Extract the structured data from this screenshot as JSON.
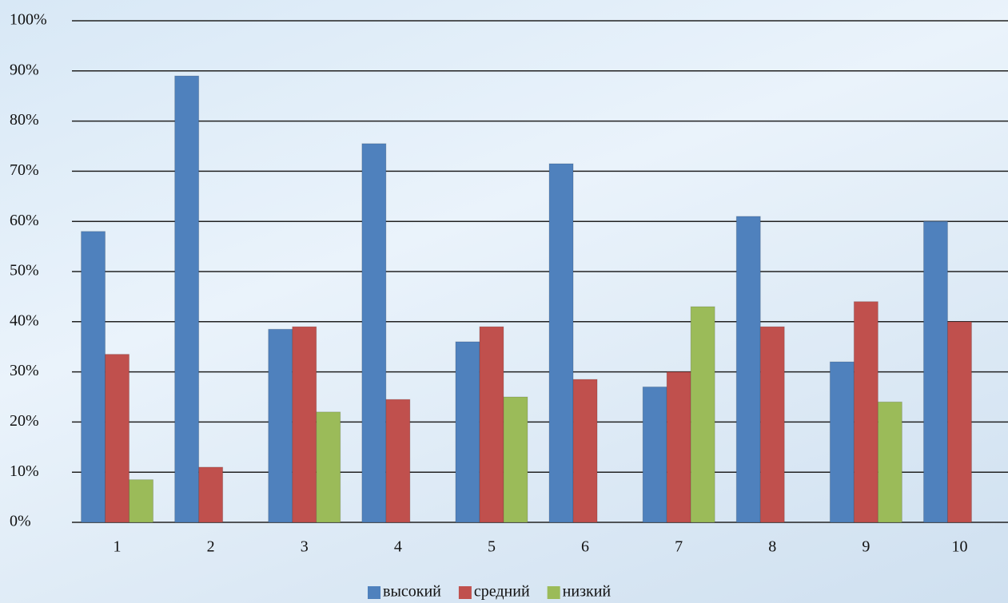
{
  "chart_data": {
    "type": "bar",
    "categories": [
      "1",
      "2",
      "3",
      "4",
      "5",
      "6",
      "7",
      "8",
      "9",
      "10"
    ],
    "series": [
      {
        "name": "высокий",
        "color": "#4f81bd",
        "values": [
          58,
          89,
          38.5,
          75.5,
          36,
          71.5,
          27,
          61,
          32,
          60
        ]
      },
      {
        "name": "средний",
        "color": "#c0504d",
        "values": [
          33.5,
          11,
          39,
          24.5,
          39,
          28.5,
          30,
          39,
          44,
          40
        ]
      },
      {
        "name": "низкий",
        "color": "#9bbb59",
        "values": [
          8.5,
          null,
          22,
          null,
          25,
          null,
          43,
          null,
          24,
          null
        ]
      }
    ],
    "ylim": [
      0,
      100
    ],
    "yticks": [
      {
        "value": 0,
        "label": "0%"
      },
      {
        "value": 10,
        "label": "10%"
      },
      {
        "value": 20,
        "label": "20%"
      },
      {
        "value": 30,
        "label": "30%"
      },
      {
        "value": 40,
        "label": "40%"
      },
      {
        "value": 50,
        "label": "50%"
      },
      {
        "value": 60,
        "label": "60%"
      },
      {
        "value": 70,
        "label": "70%"
      },
      {
        "value": 80,
        "label": "80%"
      },
      {
        "value": 90,
        "label": "90%"
      },
      {
        "value": 100,
        "label": "100%"
      }
    ],
    "grid": true,
    "legend": "bottom"
  }
}
